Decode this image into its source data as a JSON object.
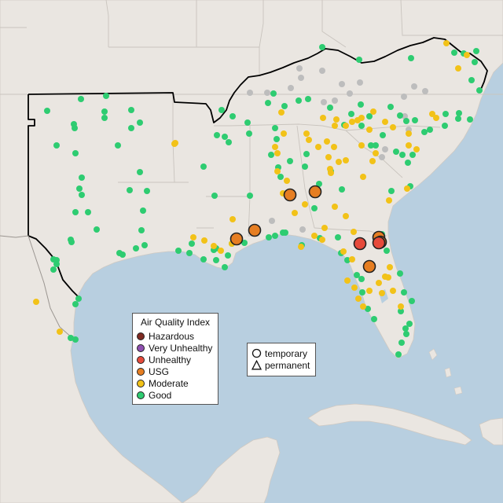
{
  "legend": {
    "title": "Air Quality Index",
    "categories": [
      {
        "label": "Hazardous",
        "color": "#7e2a22"
      },
      {
        "label": "Very Unhealthy",
        "color": "#8e4fb0"
      },
      {
        "label": "Unhealthy",
        "color": "#e64a3b"
      },
      {
        "label": "USG",
        "color": "#e67e22"
      },
      {
        "label": "Moderate",
        "color": "#f2c218"
      },
      {
        "label": "Good",
        "color": "#2ecc71"
      }
    ]
  },
  "type_legend": {
    "temporary": "temporary",
    "permanent": "permanent"
  },
  "colors": {
    "water": "#b8cfe0",
    "land": "#eae6e1",
    "no_data": "#bdbdbd",
    "border": "#000000"
  },
  "stations": {
    "good": [
      [
        60,
        141
      ],
      [
        103,
        126
      ],
      [
        135,
        122
      ],
      [
        94,
        158
      ],
      [
        95,
        163
      ],
      [
        133,
        142
      ],
      [
        133,
        150
      ],
      [
        167,
        140
      ],
      [
        178,
        156
      ],
      [
        167,
        163
      ],
      [
        72,
        185
      ],
      [
        96,
        195
      ],
      [
        150,
        185
      ],
      [
        178,
        219
      ],
      [
        104,
        226
      ],
      [
        101,
        240
      ],
      [
        104,
        248
      ],
      [
        96,
        270
      ],
      [
        112,
        270
      ],
      [
        165,
        242
      ],
      [
        187,
        243
      ],
      [
        123,
        292
      ],
      [
        180,
        293
      ],
      [
        90,
        305
      ],
      [
        91,
        308
      ],
      [
        173,
        316
      ],
      [
        184,
        312
      ],
      [
        152,
        322
      ],
      [
        156,
        324
      ],
      [
        68,
        330
      ],
      [
        72,
        331
      ],
      [
        68,
        343
      ],
      [
        72,
        336
      ],
      [
        182,
        268
      ],
      [
        100,
        380
      ],
      [
        96,
        387
      ],
      [
        90,
        430
      ],
      [
        96,
        432
      ],
      [
        282,
        140
      ],
      [
        296,
        148
      ],
      [
        276,
        172
      ],
      [
        286,
        174
      ],
      [
        291,
        181
      ],
      [
        259,
        212
      ],
      [
        273,
        249
      ],
      [
        318,
        249
      ],
      [
        317,
        170
      ],
      [
        315,
        156
      ],
      [
        350,
        163
      ],
      [
        352,
        177
      ],
      [
        345,
        197
      ],
      [
        369,
        205
      ],
      [
        354,
        213
      ],
      [
        357,
        225
      ],
      [
        388,
        212
      ],
      [
        390,
        196
      ],
      [
        362,
        135
      ],
      [
        341,
        131
      ],
      [
        348,
        119
      ],
      [
        380,
        128
      ],
      [
        392,
        126
      ],
      [
        410,
        60
      ],
      [
        457,
        76
      ],
      [
        523,
        74
      ],
      [
        578,
        67
      ],
      [
        590,
        68
      ],
      [
        606,
        65
      ],
      [
        604,
        79
      ],
      [
        610,
        115
      ],
      [
        600,
        102
      ],
      [
        584,
        144
      ],
      [
        583,
        151
      ],
      [
        540,
        168
      ],
      [
        528,
        153
      ],
      [
        509,
        147
      ],
      [
        517,
        154
      ],
      [
        497,
        136
      ],
      [
        459,
        133
      ],
      [
        420,
        137
      ],
      [
        447,
        145
      ],
      [
        438,
        159
      ],
      [
        460,
        160
      ],
      [
        470,
        148
      ],
      [
        487,
        172
      ],
      [
        472,
        185
      ],
      [
        478,
        185
      ],
      [
        504,
        193
      ],
      [
        512,
        197
      ],
      [
        525,
        197
      ],
      [
        519,
        207
      ],
      [
        547,
        165
      ],
      [
        566,
        160
      ],
      [
        567,
        145
      ],
      [
        598,
        152
      ],
      [
        498,
        243
      ],
      [
        522,
        237
      ],
      [
        486,
        298
      ],
      [
        492,
        319
      ],
      [
        509,
        348
      ],
      [
        514,
        372
      ],
      [
        510,
        396
      ],
      [
        524,
        383
      ],
      [
        521,
        412
      ],
      [
        516,
        418
      ],
      [
        517,
        425
      ],
      [
        511,
        436
      ],
      [
        507,
        451
      ],
      [
        476,
        406
      ],
      [
        468,
        393
      ],
      [
        461,
        372
      ],
      [
        460,
        355
      ],
      [
        454,
        350
      ],
      [
        442,
        331
      ],
      [
        434,
        322
      ],
      [
        430,
        302
      ],
      [
        407,
        303
      ],
      [
        406,
        234
      ],
      [
        421,
        218
      ],
      [
        435,
        241
      ],
      [
        400,
        265
      ],
      [
        384,
        312
      ],
      [
        360,
        296
      ],
      [
        350,
        300
      ],
      [
        342,
        302
      ],
      [
        244,
        310
      ],
      [
        241,
        322
      ],
      [
        259,
        330
      ],
      [
        272,
        318
      ],
      [
        275,
        316
      ],
      [
        275,
        331
      ],
      [
        286,
        340
      ],
      [
        295,
        310
      ],
      [
        290,
        325
      ],
      [
        227,
        319
      ],
      [
        311,
        309
      ],
      [
        322,
        296
      ],
      [
        363,
        296
      ]
    ],
    "moderate": [
      [
        223,
        182
      ],
      [
        358,
        143
      ],
      [
        361,
        170
      ],
      [
        350,
        187
      ],
      [
        353,
        195
      ],
      [
        353,
        218
      ],
      [
        365,
        230
      ],
      [
        360,
        246
      ],
      [
        390,
        170
      ],
      [
        405,
        187
      ],
      [
        418,
        200
      ],
      [
        420,
        215
      ],
      [
        421,
        220
      ],
      [
        431,
        206
      ],
      [
        440,
        204
      ],
      [
        426,
        263
      ],
      [
        440,
        275
      ],
      [
        462,
        225
      ],
      [
        474,
        205
      ],
      [
        478,
        195
      ],
      [
        460,
        185
      ],
      [
        470,
        165
      ],
      [
        490,
        155
      ],
      [
        500,
        162
      ],
      [
        520,
        170
      ],
      [
        520,
        185
      ],
      [
        530,
        190
      ],
      [
        550,
        145
      ],
      [
        555,
        150
      ],
      [
        568,
        55
      ],
      [
        594,
        70
      ],
      [
        583,
        87
      ],
      [
        475,
        142
      ],
      [
        460,
        150
      ],
      [
        411,
        150
      ],
      [
        428,
        152
      ],
      [
        426,
        160
      ],
      [
        440,
        160
      ],
      [
        448,
        155
      ],
      [
        455,
        153
      ],
      [
        393,
        178
      ],
      [
        416,
        180
      ],
      [
        425,
        187
      ],
      [
        375,
        271
      ],
      [
        388,
        260
      ],
      [
        400,
        300
      ],
      [
        410,
        305
      ],
      [
        437,
        320
      ],
      [
        413,
        290
      ],
      [
        450,
        295
      ],
      [
        495,
        255
      ],
      [
        518,
        240
      ],
      [
        496,
        340
      ],
      [
        490,
        352
      ],
      [
        482,
        360
      ],
      [
        470,
        370
      ],
      [
        456,
        380
      ],
      [
        462,
        390
      ],
      [
        451,
        366
      ],
      [
        442,
        357
      ],
      [
        448,
        330
      ],
      [
        383,
        314
      ],
      [
        246,
        302
      ],
      [
        260,
        306
      ],
      [
        272,
        313
      ],
      [
        281,
        319
      ],
      [
        295,
        310
      ],
      [
        296,
        279
      ],
      [
        222,
        183
      ],
      [
        46,
        384
      ],
      [
        76,
        422
      ],
      [
        494,
        353
      ],
      [
        500,
        370
      ],
      [
        486,
        373
      ],
      [
        510,
        390
      ]
    ],
    "usg": [
      [
        369,
        248
      ],
      [
        401,
        244
      ],
      [
        301,
        304
      ],
      [
        324,
        293
      ],
      [
        482,
        302
      ],
      [
        484,
        308
      ],
      [
        470,
        339
      ]
    ],
    "unhealthy": [
      [
        458,
        310
      ],
      [
        482,
        309
      ]
    ],
    "no_data": [
      [
        381,
        87
      ],
      [
        410,
        90
      ],
      [
        435,
        107
      ],
      [
        458,
        105
      ],
      [
        445,
        119
      ],
      [
        527,
        110
      ],
      [
        514,
        123
      ],
      [
        541,
        116
      ],
      [
        318,
        118
      ],
      [
        340,
        118
      ],
      [
        370,
        112
      ],
      [
        383,
        99
      ],
      [
        412,
        130
      ],
      [
        426,
        128
      ],
      [
        515,
        148
      ],
      [
        520,
        165
      ],
      [
        486,
        200
      ],
      [
        490,
        190
      ],
      [
        385,
        292
      ],
      [
        346,
        281
      ]
    ]
  }
}
